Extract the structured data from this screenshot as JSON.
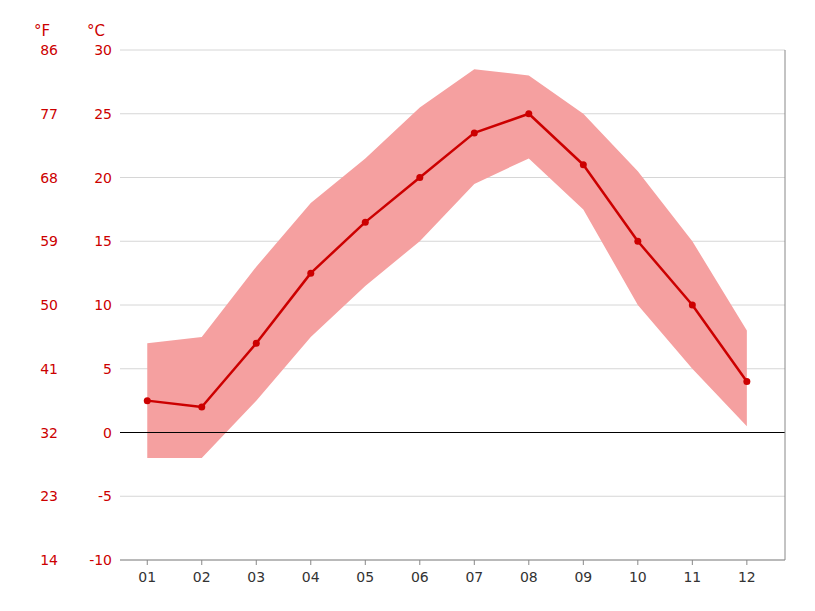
{
  "chart_data": {
    "type": "line",
    "x": [
      1,
      2,
      3,
      4,
      5,
      6,
      7,
      8,
      9,
      10,
      11,
      12
    ],
    "xlim": [
      0.5,
      12.7
    ],
    "xticks": [
      {
        "value": 1,
        "label": "01"
      },
      {
        "value": 2,
        "label": "02"
      },
      {
        "value": 3,
        "label": "03"
      },
      {
        "value": 4,
        "label": "04"
      },
      {
        "value": 5,
        "label": "05"
      },
      {
        "value": 6,
        "label": "06"
      },
      {
        "value": 7,
        "label": "07"
      },
      {
        "value": 8,
        "label": "08"
      },
      {
        "value": 9,
        "label": "09"
      },
      {
        "value": 10,
        "label": "10"
      },
      {
        "value": 11,
        "label": "11"
      },
      {
        "value": 12,
        "label": "12"
      }
    ],
    "ylabel": "°C",
    "ylim": [
      -10,
      30
    ],
    "yticks": [
      -10,
      -5,
      0,
      5,
      10,
      15,
      20,
      25,
      30
    ],
    "y2label": "°F",
    "y2lim": [
      14,
      86
    ],
    "y2ticks": [
      14,
      23,
      32,
      41,
      50,
      59,
      68,
      77,
      86
    ],
    "grid": true,
    "hlines": [
      {
        "value": 0,
        "color": "#000000"
      }
    ],
    "series": [
      {
        "type": "area",
        "color": "#f5a0a0",
        "values": [
          7.0,
          7.5,
          13.0,
          18.0,
          21.5,
          25.5,
          28.5,
          28.0,
          25.0,
          20.5,
          15.0,
          8.0
        ],
        "lower": [
          -2.0,
          -2.0,
          2.5,
          7.5,
          11.5,
          15.0,
          19.5,
          21.5,
          17.5,
          10.0,
          5.0,
          0.5
        ]
      },
      {
        "type": "line",
        "color": "#cc0000",
        "marker": "circle",
        "values": [
          2.5,
          2.0,
          7.0,
          12.5,
          16.5,
          20.0,
          23.5,
          25.0,
          21.0,
          15.0,
          10.0,
          4.0
        ]
      }
    ]
  }
}
